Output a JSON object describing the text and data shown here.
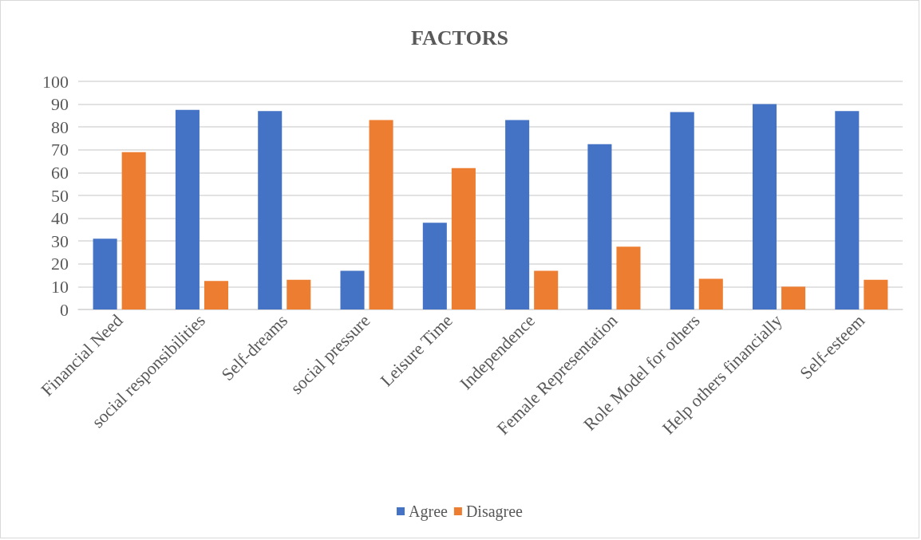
{
  "chart_data": {
    "type": "bar",
    "title": "FACTORS",
    "categories": [
      "Financial Need",
      "social responsibilities",
      "Self-dreams",
      "social pressure",
      "Leisure Time",
      "Independence",
      "Female Representation",
      "Role Model for others",
      "Help others financially",
      "Self-esteem"
    ],
    "series": [
      {
        "name": "Agree",
        "color": "#4472c4",
        "values": [
          31,
          87.5,
          87,
          17,
          38,
          83,
          72.5,
          86.5,
          90,
          87
        ]
      },
      {
        "name": "Disagree",
        "color": "#ed7d31",
        "values": [
          69,
          12.5,
          13,
          83,
          62,
          17,
          27.5,
          13.5,
          10,
          13
        ]
      }
    ],
    "ylim": [
      0,
      100
    ],
    "yticks": [
      0,
      10,
      20,
      30,
      40,
      50,
      60,
      70,
      80,
      90,
      100
    ],
    "grid": "y",
    "legend": "bottom"
  }
}
